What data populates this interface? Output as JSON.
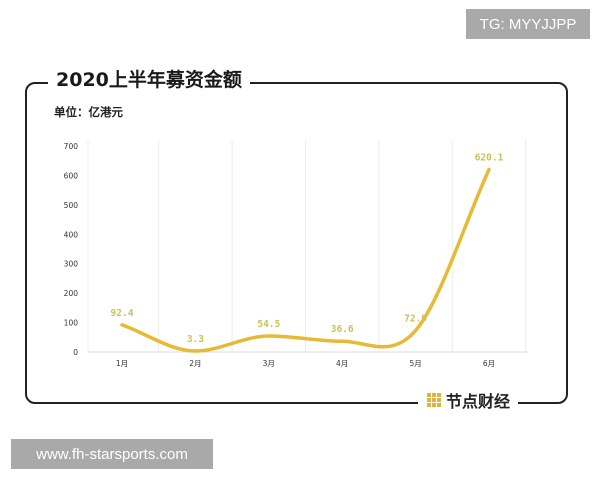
{
  "watermark_top": "TG: MYYJJPP",
  "watermark_bottom": "www.fh-starsports.com",
  "brand": {
    "name": "节点财经",
    "color": "#e0b43a"
  },
  "chart_data": {
    "type": "line",
    "title": "2020上半年募资金额",
    "unit_label": "单位：亿港元",
    "categories": [
      "1月",
      "2月",
      "3月",
      "4月",
      "5月",
      "6月"
    ],
    "values": [
      92.4,
      3.3,
      54.5,
      36.6,
      72.9,
      620.1
    ],
    "value_labels": [
      "92.4",
      "3.3",
      "54.5",
      "36.6",
      "72.9",
      "620.1"
    ],
    "yticks": [
      0,
      100,
      200,
      300,
      400,
      500,
      600,
      700
    ],
    "ylim": [
      0,
      700
    ],
    "grid": "vertical",
    "line_color": "#e8b935",
    "label_color": "#c8c25a",
    "smooth": true
  }
}
